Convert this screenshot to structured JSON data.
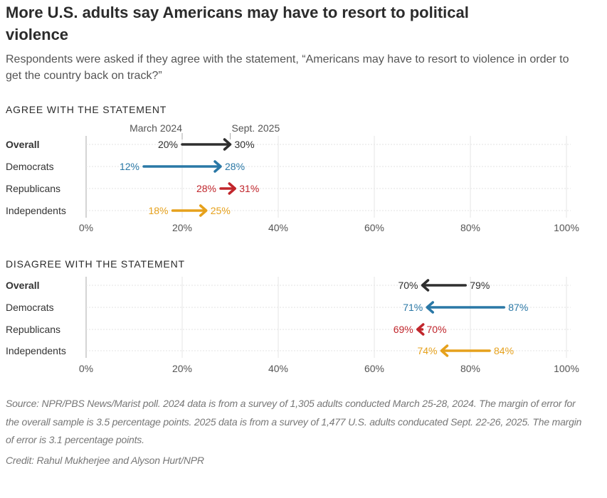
{
  "title": "More U.S. adults say Americans may have to resort to political violence",
  "subtitle": "Respondents were asked if they agree with the statement, “Americans may have to resort to violence in order to get the country back on track?”",
  "source": "Source: NPR/PBS News/Marist poll. 2024 data is from a survey of 1,305 adults conducted March 25-28, 2024. The margin of error for the overall sample is 3.5 percentage points. 2025 data is from a survey of 1,477 U.S. adults conducated Sept. 22-26, 2025. The margin of error is 3.1 percentage points.",
  "credit": "Credit: Rahul Mukherjee and Alyson Hurt/NPR",
  "colors": {
    "Overall": "#2f2f2f",
    "Democrats": "#2a78a6",
    "Republicans": "#c1262c",
    "Independents": "#e6a11c"
  },
  "chart_data": [
    {
      "type": "arrow-dot",
      "title": "Agree with the statement",
      "legend": {
        "start": "March 2024",
        "end": "Sept. 2025"
      },
      "categories": [
        "Overall",
        "Democrats",
        "Republicans",
        "Independents"
      ],
      "series": [
        {
          "name": "March 2024",
          "values": [
            20,
            12,
            28,
            18
          ]
        },
        {
          "name": "Sept. 2025",
          "values": [
            30,
            28,
            31,
            25
          ]
        }
      ],
      "xlim": [
        0,
        100
      ],
      "ticks": [
        "0%",
        "20%",
        "40%",
        "60%",
        "80%",
        "100%"
      ],
      "tick_values": [
        0,
        20,
        40,
        60,
        80,
        100
      ]
    },
    {
      "type": "arrow-dot",
      "title": "Disagree with the statement",
      "categories": [
        "Overall",
        "Democrats",
        "Republicans",
        "Independents"
      ],
      "series": [
        {
          "name": "March 2024",
          "values": [
            79,
            87,
            70,
            84
          ]
        },
        {
          "name": "Sept. 2025",
          "values": [
            70,
            71,
            69,
            74
          ]
        }
      ],
      "xlim": [
        0,
        100
      ],
      "ticks": [
        "0%",
        "20%",
        "40%",
        "60%",
        "80%",
        "100%"
      ],
      "tick_values": [
        0,
        20,
        40,
        60,
        80,
        100
      ]
    }
  ]
}
